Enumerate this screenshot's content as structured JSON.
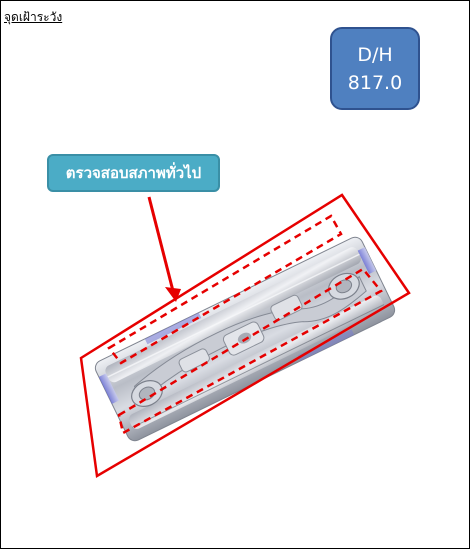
{
  "page": {
    "title": "จุดเฝ้าระวัง"
  },
  "dh_box": {
    "label": "D/H",
    "value": "817.0"
  },
  "callout": {
    "label": "ตรวจสอบสภาพทั่วไป"
  },
  "colors": {
    "marker_red": "#e60000",
    "box_blue": "#4f80c0",
    "callout_teal": "#4bacc6"
  }
}
